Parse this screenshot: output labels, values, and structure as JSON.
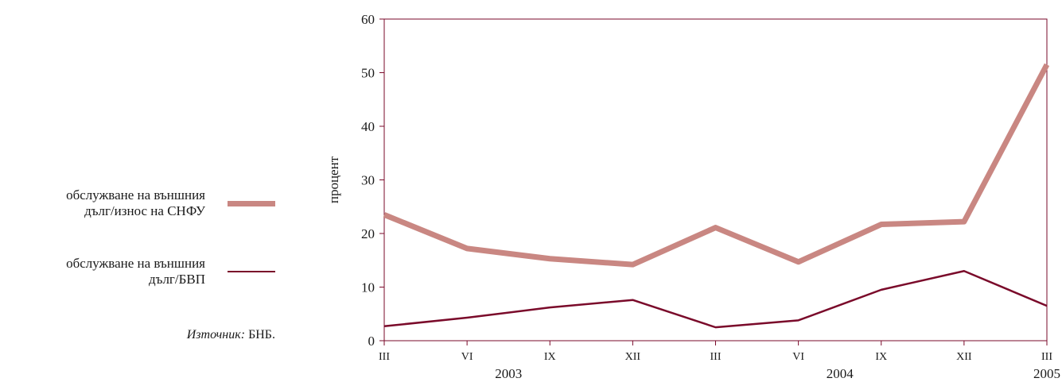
{
  "legend": {
    "items": [
      {
        "label": "обслужване на външния\nдълг/износ на СНФУ",
        "color": "#c98782",
        "style": "thick"
      },
      {
        "label": "обслужване на външния\nдълг/БВП",
        "color": "#7a0a2a",
        "style": "thin"
      }
    ]
  },
  "source": {
    "prefix": "Източник:",
    "text": "БНБ."
  },
  "chart_data": {
    "type": "line",
    "ylabel": "процент",
    "ylim": [
      0,
      60
    ],
    "yticks": [
      0,
      10,
      20,
      30,
      40,
      50,
      60
    ],
    "categories": [
      "III",
      "VI",
      "IX",
      "XII",
      "III",
      "VI",
      "IX",
      "XII",
      "III"
    ],
    "year_labels": [
      {
        "label": "2003",
        "at_index": 1.5
      },
      {
        "label": "2004",
        "at_index": 5.5
      },
      {
        "label": "2005",
        "at_index": 8
      }
    ],
    "series": [
      {
        "name": "обслужване на външния дълг/износ на СНФУ",
        "color": "#c98782",
        "values": [
          23.5,
          17.2,
          15.3,
          14.2,
          21.1,
          14.7,
          21.7,
          22.2,
          51.5
        ]
      },
      {
        "name": "обслужване на външния дълг/БВП",
        "color": "#7a0a2a",
        "values": [
          2.7,
          4.3,
          6.2,
          7.6,
          2.5,
          3.8,
          9.5,
          13.0,
          6.5
        ]
      }
    ],
    "axis_color": "#7a0a2a",
    "grid": false
  }
}
